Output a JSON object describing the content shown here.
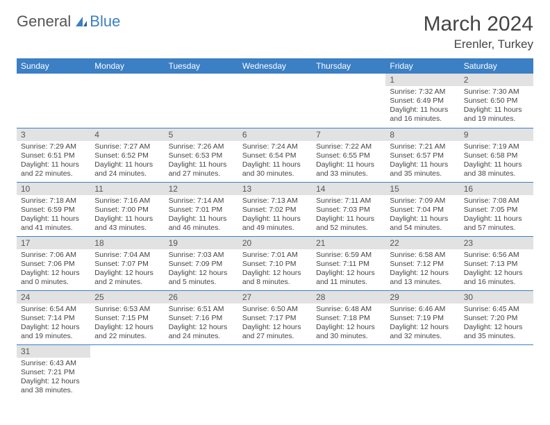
{
  "logo": {
    "textA": "General",
    "textB": "Blue"
  },
  "title": "March 2024",
  "location": "Erenler, Turkey",
  "colors": {
    "headerBg": "#3b7fc4",
    "headerFg": "#ffffff",
    "dayNumBg": "#e2e2e2",
    "text": "#444444",
    "rowDivider": "#3b7fc4",
    "pageBg": "#ffffff"
  },
  "weekdays": [
    "Sunday",
    "Monday",
    "Tuesday",
    "Wednesday",
    "Thursday",
    "Friday",
    "Saturday"
  ],
  "weeks": [
    [
      null,
      null,
      null,
      null,
      null,
      {
        "n": "1",
        "sr": "Sunrise: 7:32 AM",
        "ss": "Sunset: 6:49 PM",
        "dl": "Daylight: 11 hours and 16 minutes."
      },
      {
        "n": "2",
        "sr": "Sunrise: 7:30 AM",
        "ss": "Sunset: 6:50 PM",
        "dl": "Daylight: 11 hours and 19 minutes."
      }
    ],
    [
      {
        "n": "3",
        "sr": "Sunrise: 7:29 AM",
        "ss": "Sunset: 6:51 PM",
        "dl": "Daylight: 11 hours and 22 minutes."
      },
      {
        "n": "4",
        "sr": "Sunrise: 7:27 AM",
        "ss": "Sunset: 6:52 PM",
        "dl": "Daylight: 11 hours and 24 minutes."
      },
      {
        "n": "5",
        "sr": "Sunrise: 7:26 AM",
        "ss": "Sunset: 6:53 PM",
        "dl": "Daylight: 11 hours and 27 minutes."
      },
      {
        "n": "6",
        "sr": "Sunrise: 7:24 AM",
        "ss": "Sunset: 6:54 PM",
        "dl": "Daylight: 11 hours and 30 minutes."
      },
      {
        "n": "7",
        "sr": "Sunrise: 7:22 AM",
        "ss": "Sunset: 6:55 PM",
        "dl": "Daylight: 11 hours and 33 minutes."
      },
      {
        "n": "8",
        "sr": "Sunrise: 7:21 AM",
        "ss": "Sunset: 6:57 PM",
        "dl": "Daylight: 11 hours and 35 minutes."
      },
      {
        "n": "9",
        "sr": "Sunrise: 7:19 AM",
        "ss": "Sunset: 6:58 PM",
        "dl": "Daylight: 11 hours and 38 minutes."
      }
    ],
    [
      {
        "n": "10",
        "sr": "Sunrise: 7:18 AM",
        "ss": "Sunset: 6:59 PM",
        "dl": "Daylight: 11 hours and 41 minutes."
      },
      {
        "n": "11",
        "sr": "Sunrise: 7:16 AM",
        "ss": "Sunset: 7:00 PM",
        "dl": "Daylight: 11 hours and 43 minutes."
      },
      {
        "n": "12",
        "sr": "Sunrise: 7:14 AM",
        "ss": "Sunset: 7:01 PM",
        "dl": "Daylight: 11 hours and 46 minutes."
      },
      {
        "n": "13",
        "sr": "Sunrise: 7:13 AM",
        "ss": "Sunset: 7:02 PM",
        "dl": "Daylight: 11 hours and 49 minutes."
      },
      {
        "n": "14",
        "sr": "Sunrise: 7:11 AM",
        "ss": "Sunset: 7:03 PM",
        "dl": "Daylight: 11 hours and 52 minutes."
      },
      {
        "n": "15",
        "sr": "Sunrise: 7:09 AM",
        "ss": "Sunset: 7:04 PM",
        "dl": "Daylight: 11 hours and 54 minutes."
      },
      {
        "n": "16",
        "sr": "Sunrise: 7:08 AM",
        "ss": "Sunset: 7:05 PM",
        "dl": "Daylight: 11 hours and 57 minutes."
      }
    ],
    [
      {
        "n": "17",
        "sr": "Sunrise: 7:06 AM",
        "ss": "Sunset: 7:06 PM",
        "dl": "Daylight: 12 hours and 0 minutes."
      },
      {
        "n": "18",
        "sr": "Sunrise: 7:04 AM",
        "ss": "Sunset: 7:07 PM",
        "dl": "Daylight: 12 hours and 2 minutes."
      },
      {
        "n": "19",
        "sr": "Sunrise: 7:03 AM",
        "ss": "Sunset: 7:09 PM",
        "dl": "Daylight: 12 hours and 5 minutes."
      },
      {
        "n": "20",
        "sr": "Sunrise: 7:01 AM",
        "ss": "Sunset: 7:10 PM",
        "dl": "Daylight: 12 hours and 8 minutes."
      },
      {
        "n": "21",
        "sr": "Sunrise: 6:59 AM",
        "ss": "Sunset: 7:11 PM",
        "dl": "Daylight: 12 hours and 11 minutes."
      },
      {
        "n": "22",
        "sr": "Sunrise: 6:58 AM",
        "ss": "Sunset: 7:12 PM",
        "dl": "Daylight: 12 hours and 13 minutes."
      },
      {
        "n": "23",
        "sr": "Sunrise: 6:56 AM",
        "ss": "Sunset: 7:13 PM",
        "dl": "Daylight: 12 hours and 16 minutes."
      }
    ],
    [
      {
        "n": "24",
        "sr": "Sunrise: 6:54 AM",
        "ss": "Sunset: 7:14 PM",
        "dl": "Daylight: 12 hours and 19 minutes."
      },
      {
        "n": "25",
        "sr": "Sunrise: 6:53 AM",
        "ss": "Sunset: 7:15 PM",
        "dl": "Daylight: 12 hours and 22 minutes."
      },
      {
        "n": "26",
        "sr": "Sunrise: 6:51 AM",
        "ss": "Sunset: 7:16 PM",
        "dl": "Daylight: 12 hours and 24 minutes."
      },
      {
        "n": "27",
        "sr": "Sunrise: 6:50 AM",
        "ss": "Sunset: 7:17 PM",
        "dl": "Daylight: 12 hours and 27 minutes."
      },
      {
        "n": "28",
        "sr": "Sunrise: 6:48 AM",
        "ss": "Sunset: 7:18 PM",
        "dl": "Daylight: 12 hours and 30 minutes."
      },
      {
        "n": "29",
        "sr": "Sunrise: 6:46 AM",
        "ss": "Sunset: 7:19 PM",
        "dl": "Daylight: 12 hours and 32 minutes."
      },
      {
        "n": "30",
        "sr": "Sunrise: 6:45 AM",
        "ss": "Sunset: 7:20 PM",
        "dl": "Daylight: 12 hours and 35 minutes."
      }
    ],
    [
      {
        "n": "31",
        "sr": "Sunrise: 6:43 AM",
        "ss": "Sunset: 7:21 PM",
        "dl": "Daylight: 12 hours and 38 minutes."
      },
      null,
      null,
      null,
      null,
      null,
      null
    ]
  ]
}
